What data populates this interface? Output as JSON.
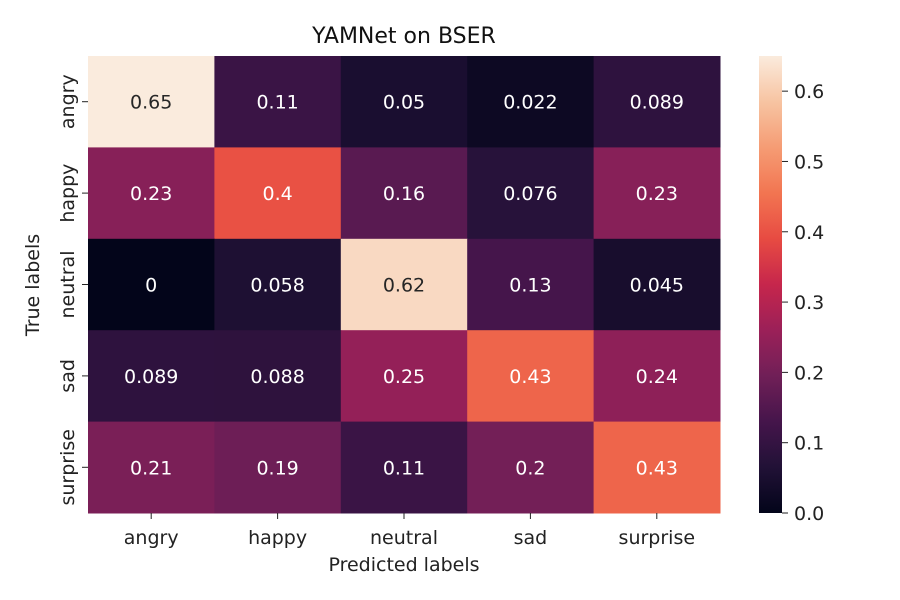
{
  "chart_data": {
    "type": "heatmap",
    "title": "YAMNet on BSER",
    "xlabel": "Predicted labels",
    "ylabel": "True labels",
    "x_categories": [
      "angry",
      "happy",
      "neutral",
      "sad",
      "surprise"
    ],
    "y_categories": [
      "angry",
      "happy",
      "neutral",
      "sad",
      "surprise"
    ],
    "values": [
      [
        0.65,
        0.11,
        0.05,
        0.022,
        0.089
      ],
      [
        0.23,
        0.4,
        0.16,
        0.076,
        0.23
      ],
      [
        0,
        0.058,
        0.62,
        0.13,
        0.045
      ],
      [
        0.089,
        0.088,
        0.25,
        0.43,
        0.24
      ],
      [
        0.21,
        0.19,
        0.11,
        0.2,
        0.43
      ]
    ],
    "value_labels": [
      [
        "0.65",
        "0.11",
        "0.05",
        "0.022",
        "0.089"
      ],
      [
        "0.23",
        "0.4",
        "0.16",
        "0.076",
        "0.23"
      ],
      [
        "0",
        "0.058",
        "0.62",
        "0.13",
        "0.045"
      ],
      [
        "0.089",
        "0.088",
        "0.25",
        "0.43",
        "0.24"
      ],
      [
        "0.21",
        "0.19",
        "0.11",
        "0.2",
        "0.43"
      ]
    ],
    "colorbar": {
      "min": 0,
      "max": 0.65,
      "ticks": [
        "0.0",
        "0.1",
        "0.2",
        "0.3",
        "0.4",
        "0.5",
        "0.6"
      ]
    },
    "colormap": "rocket",
    "grid": false
  }
}
